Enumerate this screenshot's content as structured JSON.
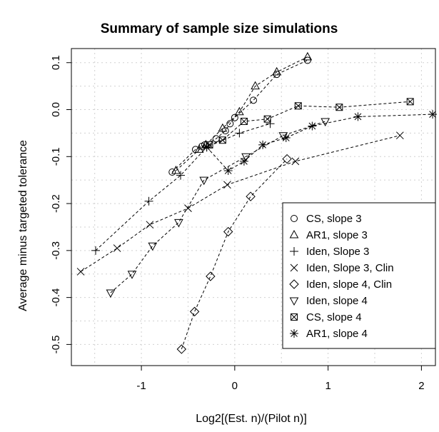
{
  "chart_data": {
    "type": "scatter",
    "title": "Summary of sample size simulations",
    "xlabel": "Log2[(Est. n)/(Pilot n)]",
    "ylabel": "Average minus targeted tolerance",
    "xlim": [
      -1.75,
      2.15
    ],
    "ylim": [
      -0.545,
      0.13
    ],
    "xticks": [
      -1,
      0,
      1,
      2
    ],
    "yticks": [
      -0.5,
      -0.4,
      -0.3,
      -0.2,
      -0.1,
      0.0,
      0.1
    ],
    "ytick_labels": [
      "-0.5",
      "-0.4",
      "-0.3",
      "-0.2",
      "-0.1",
      "0.0",
      "0.1"
    ],
    "grid": true,
    "legend_position": "bottom-right",
    "series": [
      {
        "name": "CS, slope 3",
        "marker": "circle",
        "x": [
          -0.67,
          -0.42,
          -0.35,
          -0.32,
          -0.2,
          -0.1,
          -0.05,
          0.0,
          0.2,
          0.45,
          0.78
        ],
        "y": [
          -0.133,
          -0.085,
          -0.078,
          -0.075,
          -0.062,
          -0.045,
          -0.03,
          -0.017,
          0.02,
          0.075,
          0.105
        ]
      },
      {
        "name": "AR1, slope 3",
        "marker": "triangle-up",
        "x": [
          -0.63,
          -0.38,
          -0.31,
          -0.13,
          0.05,
          0.22,
          0.45,
          0.78
        ],
        "y": [
          -0.13,
          -0.085,
          -0.075,
          -0.04,
          -0.005,
          0.05,
          0.08,
          0.112
        ]
      },
      {
        "name": "Iden, Slope 3",
        "marker": "plus",
        "x": [
          -1.49,
          -0.92,
          -0.58,
          -0.3,
          0.05,
          0.38
        ],
        "y": [
          -0.3,
          -0.195,
          -0.14,
          -0.08,
          -0.05,
          -0.03
        ]
      },
      {
        "name": "Iden, Slope 3, Clin",
        "marker": "x",
        "x": [
          -1.65,
          -1.26,
          -0.91,
          -0.5,
          -0.08,
          0.65,
          1.77
        ],
        "y": [
          -0.345,
          -0.295,
          -0.245,
          -0.21,
          -0.16,
          -0.11,
          -0.055
        ]
      },
      {
        "name": "Iden, slope 4, Clin",
        "marker": "diamond",
        "x": [
          -0.57,
          -0.43,
          -0.26,
          -0.07,
          0.17,
          0.56
        ],
        "y": [
          -0.51,
          -0.43,
          -0.355,
          -0.26,
          -0.185,
          -0.105
        ]
      },
      {
        "name": "Iden, slope 4",
        "marker": "triangle-down",
        "x": [
          -1.33,
          -1.1,
          -0.88,
          -0.6,
          -0.33,
          0.12,
          0.52,
          0.97
        ],
        "y": [
          -0.39,
          -0.35,
          -0.29,
          -0.24,
          -0.15,
          -0.1,
          -0.055,
          -0.025
        ]
      },
      {
        "name": "CS, slope 4",
        "marker": "box-x",
        "x": [
          -0.27,
          -0.13,
          0.1,
          0.35,
          0.68,
          1.12,
          1.88
        ],
        "y": [
          -0.075,
          -0.065,
          -0.025,
          -0.02,
          0.008,
          0.005,
          0.017
        ]
      },
      {
        "name": "AR1, slope 4",
        "marker": "star",
        "x": [
          -0.3,
          -0.07,
          0.1,
          0.3,
          0.55,
          0.83,
          1.32,
          2.12
        ],
        "y": [
          -0.08,
          -0.13,
          -0.11,
          -0.075,
          -0.06,
          -0.035,
          -0.015,
          -0.01
        ]
      }
    ]
  }
}
